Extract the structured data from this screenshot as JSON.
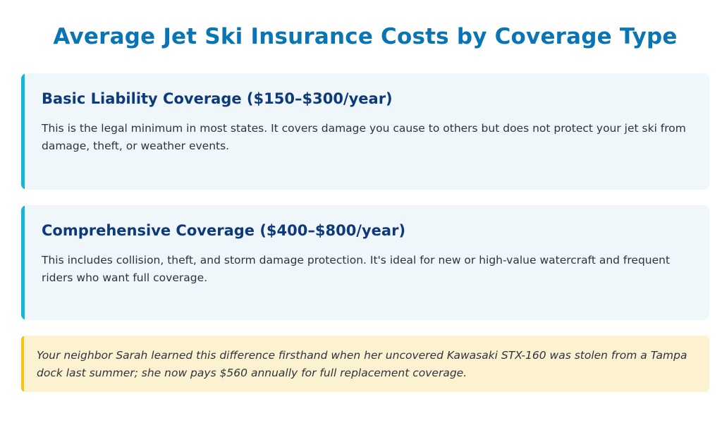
{
  "page": {
    "title": "Average Jet Ski Insurance Costs by Coverage Type"
  },
  "sections": [
    {
      "heading": "Basic Liability Coverage ($150–$300/year)",
      "body": "This is the legal minimum in most states. It covers damage you cause to others but does not protect your jet ski from damage, theft, or weather events."
    },
    {
      "heading": "Comprehensive Coverage ($400–$800/year)",
      "body": "This includes collision, theft, and storm damage protection. It's ideal for new or high-value watercraft and frequent riders who want full coverage."
    }
  ],
  "note": {
    "text": "Your neighbor Sarah learned this difference firsthand when her uncovered Kawasaki STX-160 was stolen from a Tampa dock last summer; she now pays $560 annually for full replacement coverage."
  },
  "colors": {
    "title": "#0a75b5",
    "heading": "#0d3a7a",
    "card_bg": "#f0f7fb",
    "card_accent": "#10b6d3",
    "note_bg": "#fdf2cf",
    "note_accent": "#f3c318"
  }
}
